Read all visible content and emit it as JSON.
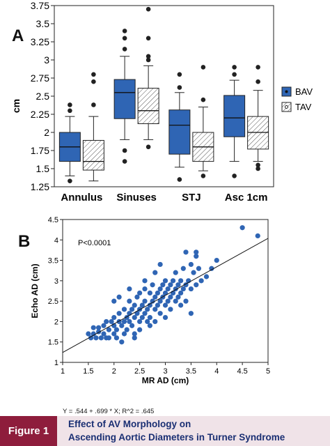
{
  "panel_a_letter": "A",
  "panel_b_letter": "B",
  "equation": "Y = .544 + .699 * X; R^2 = .645",
  "figure": {
    "label": "Figure 1",
    "title_line1": "Effect of AV Morphology on",
    "title_line2": "Ascending Aortic Diameters in Turner Syndrome"
  },
  "colors": {
    "bav": "#2f65b4",
    "tav_fill": "#ffffff",
    "points": "#2f65b4",
    "figure_label_bg": "#8e1d3c",
    "footer_bg": "#f0e3e8",
    "title_text": "#1a2f73"
  },
  "chart_data": [
    {
      "type": "box",
      "ylabel": "cm",
      "ylim": [
        1.25,
        3.75
      ],
      "yticks": [
        "1.25",
        "1.5",
        "1.75",
        "2",
        "2.25",
        "2.5",
        "2.75",
        "3",
        "3.25",
        "3.5",
        "3.75"
      ],
      "categories": [
        "Annulus",
        "Sinuses",
        "STJ",
        "Asc 1cm"
      ],
      "legend": [
        "BAV",
        "TAV"
      ],
      "legend_position": "right",
      "series": [
        {
          "name": "BAV",
          "boxes": [
            {
              "q1": 1.6,
              "median": 1.8,
              "q3": 2.0,
              "low": 1.4,
              "high": 2.22,
              "outliers": [
                1.33,
                2.3,
                2.38
              ]
            },
            {
              "q1": 2.19,
              "median": 2.55,
              "q3": 2.73,
              "low": 1.9,
              "high": 3.05,
              "outliers": [
                1.6,
                1.75,
                3.15,
                3.3,
                3.4
              ]
            },
            {
              "q1": 1.7,
              "median": 2.1,
              "q3": 2.31,
              "low": 1.52,
              "high": 2.55,
              "outliers": [
                1.35,
                2.62,
                2.8
              ]
            },
            {
              "q1": 1.94,
              "median": 2.2,
              "q3": 2.51,
              "low": 1.6,
              "high": 2.72,
              "outliers": [
                1.4,
                2.8,
                2.9
              ]
            }
          ]
        },
        {
          "name": "TAV",
          "boxes": [
            {
              "q1": 1.48,
              "median": 1.6,
              "q3": 1.89,
              "low": 1.33,
              "high": 2.22,
              "outliers": [
                2.38,
                2.7,
                2.8
              ]
            },
            {
              "q1": 2.12,
              "median": 2.3,
              "q3": 2.61,
              "low": 1.9,
              "high": 2.92,
              "outliers": [
                1.8,
                3.0,
                3.05,
                3.3,
                3.7
              ]
            },
            {
              "q1": 1.6,
              "median": 1.8,
              "q3": 2.0,
              "low": 1.47,
              "high": 2.35,
              "outliers": [
                1.4,
                2.45,
                2.9
              ]
            },
            {
              "q1": 1.77,
              "median": 2.0,
              "q3": 2.22,
              "low": 1.6,
              "high": 2.58,
              "outliers": [
                1.5,
                1.55,
                2.7,
                2.9
              ]
            }
          ]
        }
      ]
    },
    {
      "type": "scatter",
      "xlabel": "MR AD (cm)",
      "ylabel": "Echo AD (cm)",
      "xlim": [
        1,
        5
      ],
      "ylim": [
        1,
        4.5
      ],
      "xticks": [
        "1",
        "1.5",
        "2",
        "2.5",
        "3",
        "3.5",
        "4",
        "4.5",
        "5"
      ],
      "yticks": [
        "1",
        "1.5",
        "2",
        "2.5",
        "3",
        "3.5",
        "4",
        "4.5"
      ],
      "annotation": "P<0.0001",
      "fit": {
        "intercept": 0.544,
        "slope": 0.699
      },
      "points": [
        [
          1.5,
          1.7
        ],
        [
          1.55,
          1.6
        ],
        [
          1.6,
          1.7
        ],
        [
          1.6,
          1.85
        ],
        [
          1.65,
          1.6
        ],
        [
          1.7,
          1.75
        ],
        [
          1.7,
          1.85
        ],
        [
          1.75,
          1.6
        ],
        [
          1.8,
          1.7
        ],
        [
          1.8,
          1.9
        ],
        [
          1.85,
          2.0
        ],
        [
          1.85,
          1.6
        ],
        [
          1.9,
          1.8
        ],
        [
          1.9,
          1.6
        ],
        [
          1.95,
          2.0
        ],
        [
          2.0,
          1.7
        ],
        [
          2.0,
          1.9
        ],
        [
          2.0,
          2.1
        ],
        [
          2.05,
          1.6
        ],
        [
          2.05,
          1.8
        ],
        [
          2.1,
          2.0
        ],
        [
          2.1,
          2.2
        ],
        [
          2.15,
          1.9
        ],
        [
          2.15,
          1.5
        ],
        [
          2.2,
          2.0
        ],
        [
          2.2,
          2.3
        ],
        [
          2.2,
          1.7
        ],
        [
          2.25,
          2.1
        ],
        [
          2.25,
          1.8
        ],
        [
          2.3,
          2.0
        ],
        [
          2.3,
          2.2
        ],
        [
          2.3,
          2.5
        ],
        [
          2.35,
          1.9
        ],
        [
          2.35,
          2.3
        ],
        [
          2.4,
          2.1
        ],
        [
          2.4,
          2.4
        ],
        [
          2.4,
          1.7
        ],
        [
          2.45,
          2.2
        ],
        [
          2.45,
          2.6
        ],
        [
          2.5,
          2.0
        ],
        [
          2.5,
          2.3
        ],
        [
          2.5,
          2.7
        ],
        [
          2.5,
          1.8
        ],
        [
          2.55,
          2.4
        ],
        [
          2.55,
          2.1
        ],
        [
          2.6,
          2.2
        ],
        [
          2.6,
          2.5
        ],
        [
          2.6,
          2.8
        ],
        [
          2.65,
          2.3
        ],
        [
          2.65,
          2.0
        ],
        [
          2.7,
          2.4
        ],
        [
          2.7,
          2.7
        ],
        [
          2.7,
          2.1
        ],
        [
          2.75,
          2.5
        ],
        [
          2.75,
          2.9
        ],
        [
          2.8,
          2.3
        ],
        [
          2.8,
          2.6
        ],
        [
          2.8,
          2.0
        ],
        [
          2.85,
          2.7
        ],
        [
          2.85,
          2.4
        ],
        [
          2.9,
          2.5
        ],
        [
          2.9,
          2.8
        ],
        [
          2.9,
          2.2
        ],
        [
          2.95,
          2.6
        ],
        [
          2.95,
          2.9
        ],
        [
          3.0,
          2.4
        ],
        [
          3.0,
          2.7
        ],
        [
          3.0,
          3.0
        ],
        [
          3.0,
          2.1
        ],
        [
          3.05,
          2.8
        ],
        [
          3.05,
          2.5
        ],
        [
          3.1,
          2.6
        ],
        [
          3.1,
          2.9
        ],
        [
          3.1,
          2.3
        ],
        [
          3.15,
          2.7
        ],
        [
          3.15,
          3.0
        ],
        [
          3.2,
          2.5
        ],
        [
          3.2,
          2.8
        ],
        [
          3.2,
          3.2
        ],
        [
          3.25,
          2.9
        ],
        [
          3.25,
          2.6
        ],
        [
          3.3,
          2.7
        ],
        [
          3.3,
          3.0
        ],
        [
          3.35,
          2.8
        ],
        [
          3.35,
          3.3
        ],
        [
          3.4,
          2.9
        ],
        [
          3.4,
          2.5
        ],
        [
          3.45,
          3.0
        ],
        [
          3.5,
          2.8
        ],
        [
          3.5,
          3.4
        ],
        [
          3.55,
          3.2
        ],
        [
          3.6,
          2.9
        ],
        [
          3.6,
          3.6
        ],
        [
          3.65,
          3.3
        ],
        [
          3.7,
          3.0
        ],
        [
          3.8,
          3.1
        ],
        [
          3.9,
          3.3
        ],
        [
          4.0,
          3.5
        ],
        [
          4.5,
          4.3
        ],
        [
          4.8,
          4.1
        ],
        [
          2.1,
          2.6
        ],
        [
          2.3,
          2.8
        ],
        [
          2.6,
          3.0
        ],
        [
          2.0,
          2.5
        ],
        [
          2.8,
          3.2
        ],
        [
          3.4,
          3.7
        ],
        [
          3.5,
          2.2
        ],
        [
          3.6,
          3.7
        ],
        [
          2.7,
          1.9
        ],
        [
          2.4,
          1.6
        ],
        [
          3.3,
          2.4
        ],
        [
          2.9,
          3.4
        ]
      ]
    }
  ]
}
